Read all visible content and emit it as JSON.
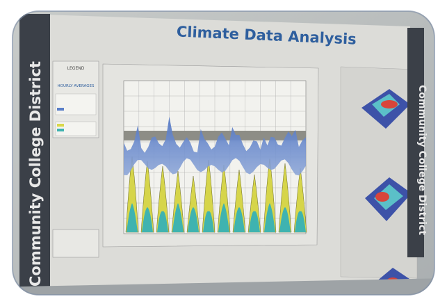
{
  "poster": {
    "title": "Climate Data Analysis",
    "left_banner": "Community College District",
    "right_banner": "Community College District",
    "legend": {
      "heading": "LEGEND",
      "section": "HOURLY AVERAGES"
    }
  }
}
